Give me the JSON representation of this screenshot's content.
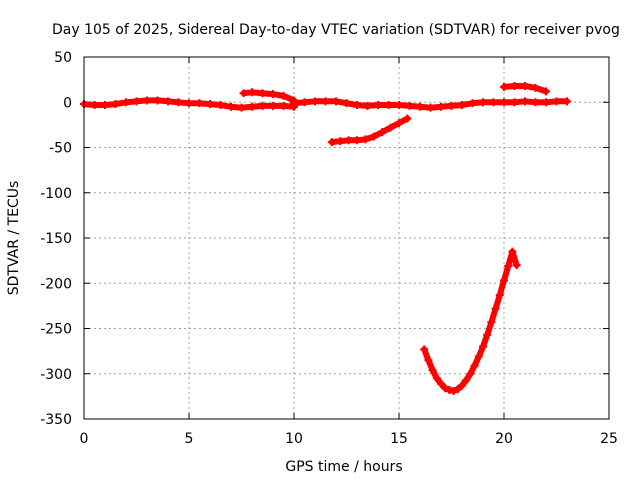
{
  "chart_data": {
    "type": "scatter",
    "title": "Day 105 of 2025, Sidereal Day-to-day VTEC variation (SDTVAR) for receiver pvog",
    "xlabel": "GPS time / hours",
    "ylabel": "SDTVAR / TECUs",
    "xlim": [
      0,
      25
    ],
    "ylim": [
      -350,
      50
    ],
    "xticks": [
      0,
      5,
      10,
      15,
      20,
      25
    ],
    "yticks": [
      -350,
      -300,
      -250,
      -200,
      -150,
      -100,
      -50,
      0,
      50
    ],
    "grid": true,
    "legend": "none",
    "series_color": "#ff0000",
    "series": [
      {
        "x": [
          0.0,
          0.5,
          1.0,
          1.5,
          2.0,
          2.5,
          3.0,
          3.5,
          4.0,
          4.5,
          5.0,
          5.5,
          6.0,
          6.5,
          7.0,
          7.5,
          8.0,
          8.5,
          9.0,
          9.5,
          10.0
        ],
        "y": [
          -2,
          -3,
          -3,
          -2,
          0,
          1,
          2,
          2,
          1,
          0,
          -1,
          -1,
          -2,
          -3,
          -5,
          -6,
          -5,
          -4,
          -4,
          -4,
          -5
        ]
      },
      {
        "x": [
          7.6,
          8.0,
          8.5,
          9.0,
          9.5,
          10.0
        ],
        "y": [
          10,
          11,
          10,
          9,
          7,
          2
        ]
      },
      {
        "x": [
          10.0,
          10.5,
          11.0,
          11.5,
          12.0,
          12.5,
          13.0,
          13.5,
          14.0,
          14.5,
          15.0,
          15.5,
          16.0,
          16.5,
          17.0,
          17.5,
          18.0,
          18.5,
          19.0,
          19.5,
          20.0,
          20.5,
          21.0,
          21.5,
          22.0,
          22.5,
          23.0
        ],
        "y": [
          -1,
          0,
          1,
          1,
          1,
          -1,
          -3,
          -4,
          -3,
          -3,
          -3,
          -4,
          -5,
          -6,
          -5,
          -4,
          -3,
          -1,
          0,
          0,
          0,
          0,
          1,
          0,
          0,
          1,
          1
        ]
      },
      {
        "x": [
          11.8,
          12.2,
          12.6,
          13.0,
          13.4,
          13.8,
          14.2,
          14.6,
          15.0,
          15.4
        ],
        "y": [
          -44,
          -43,
          -42,
          -42,
          -41,
          -38,
          -33,
          -28,
          -23,
          -18
        ]
      },
      {
        "x": [
          20.0,
          20.5,
          21.0,
          21.5,
          22.0
        ],
        "y": [
          17,
          18,
          18,
          16,
          12
        ]
      },
      {
        "x": [
          16.2,
          16.4,
          16.6,
          16.8,
          17.0,
          17.2,
          17.4,
          17.6,
          17.8,
          18.0,
          18.2,
          18.4,
          18.6,
          18.8,
          19.0,
          19.2,
          19.4,
          19.6,
          19.8,
          20.0,
          20.2,
          20.4,
          20.6
        ],
        "y": [
          -273,
          -285,
          -296,
          -305,
          -311,
          -316,
          -318,
          -319,
          -317,
          -313,
          -307,
          -300,
          -291,
          -281,
          -270,
          -257,
          -243,
          -228,
          -213,
          -197,
          -181,
          -165,
          -180
        ]
      }
    ]
  }
}
